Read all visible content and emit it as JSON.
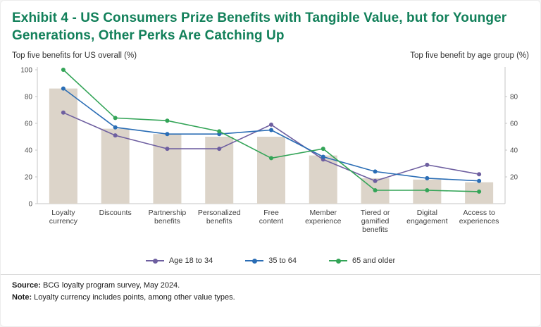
{
  "title": "Exhibit 4 - US Consumers Prize Benefits with Tangible Value, but for Younger Generations, Other Perks Are Catching Up",
  "left_axis_caption": "Top five benefits for US overall (%)",
  "right_axis_caption": "Top five benefit by age group (%)",
  "colors": {
    "title_green": "#12805a",
    "bar_fill": "#dcd4c9",
    "axis_line": "#c6c6c6",
    "tick_text": "#4d4d4d",
    "label_text": "#3f3f3f"
  },
  "chart_data": {
    "type": "bar+line",
    "title": "US consumer loyalty program benefits",
    "categories": [
      "Loyalty currency",
      "Discounts",
      "Partnership benefits",
      "Personalized benefits",
      "Free content",
      "Member experience",
      "Tiered or gamified benefits",
      "Digital engagement",
      "Access to experiences"
    ],
    "category_label_lines": [
      [
        "Loyalty",
        "currency"
      ],
      [
        "Discounts"
      ],
      [
        "Partnership",
        "benefits"
      ],
      [
        "Personalized",
        "benefits"
      ],
      [
        "Free",
        "content"
      ],
      [
        "Member",
        "experience"
      ],
      [
        "Tiered or",
        "gamified",
        "benefits"
      ],
      [
        "Digital",
        "engagement"
      ],
      [
        "Access to",
        "experiences"
      ]
    ],
    "bars": {
      "name": "Top five benefits for US overall (%)",
      "color": "#dcd4c9",
      "values": [
        86,
        56,
        52,
        50,
        50,
        36,
        19,
        18,
        16
      ]
    },
    "series": [
      {
        "name": "Age 18 to 34",
        "color": "#6e5fa0",
        "values": [
          68,
          51,
          41,
          41,
          59,
          33,
          17,
          29,
          22
        ]
      },
      {
        "name": "35 to 64",
        "color": "#2a6db5",
        "values": [
          86,
          57,
          52,
          52,
          55,
          35,
          24,
          19,
          17
        ]
      },
      {
        "name": "65 and older",
        "color": "#33a457",
        "values": [
          100,
          64,
          62,
          54,
          34,
          41,
          10,
          10,
          9
        ]
      }
    ],
    "ylim": [
      0,
      100
    ],
    "left_ticks": [
      0,
      20,
      40,
      60,
      80,
      100
    ],
    "right_ticks": [
      20,
      40,
      60,
      80
    ],
    "grid": false,
    "legend_position": "bottom",
    "xlabel": "",
    "ylabel_left": "Top five benefits for US overall (%)",
    "ylabel_right": "Top five benefit by age group (%)"
  },
  "footer": {
    "source_label": "Source:",
    "source_text": "BCG loyalty program survey, May 2024.",
    "note_label": "Note:",
    "note_text": "Loyalty currency includes points, among other value types."
  }
}
